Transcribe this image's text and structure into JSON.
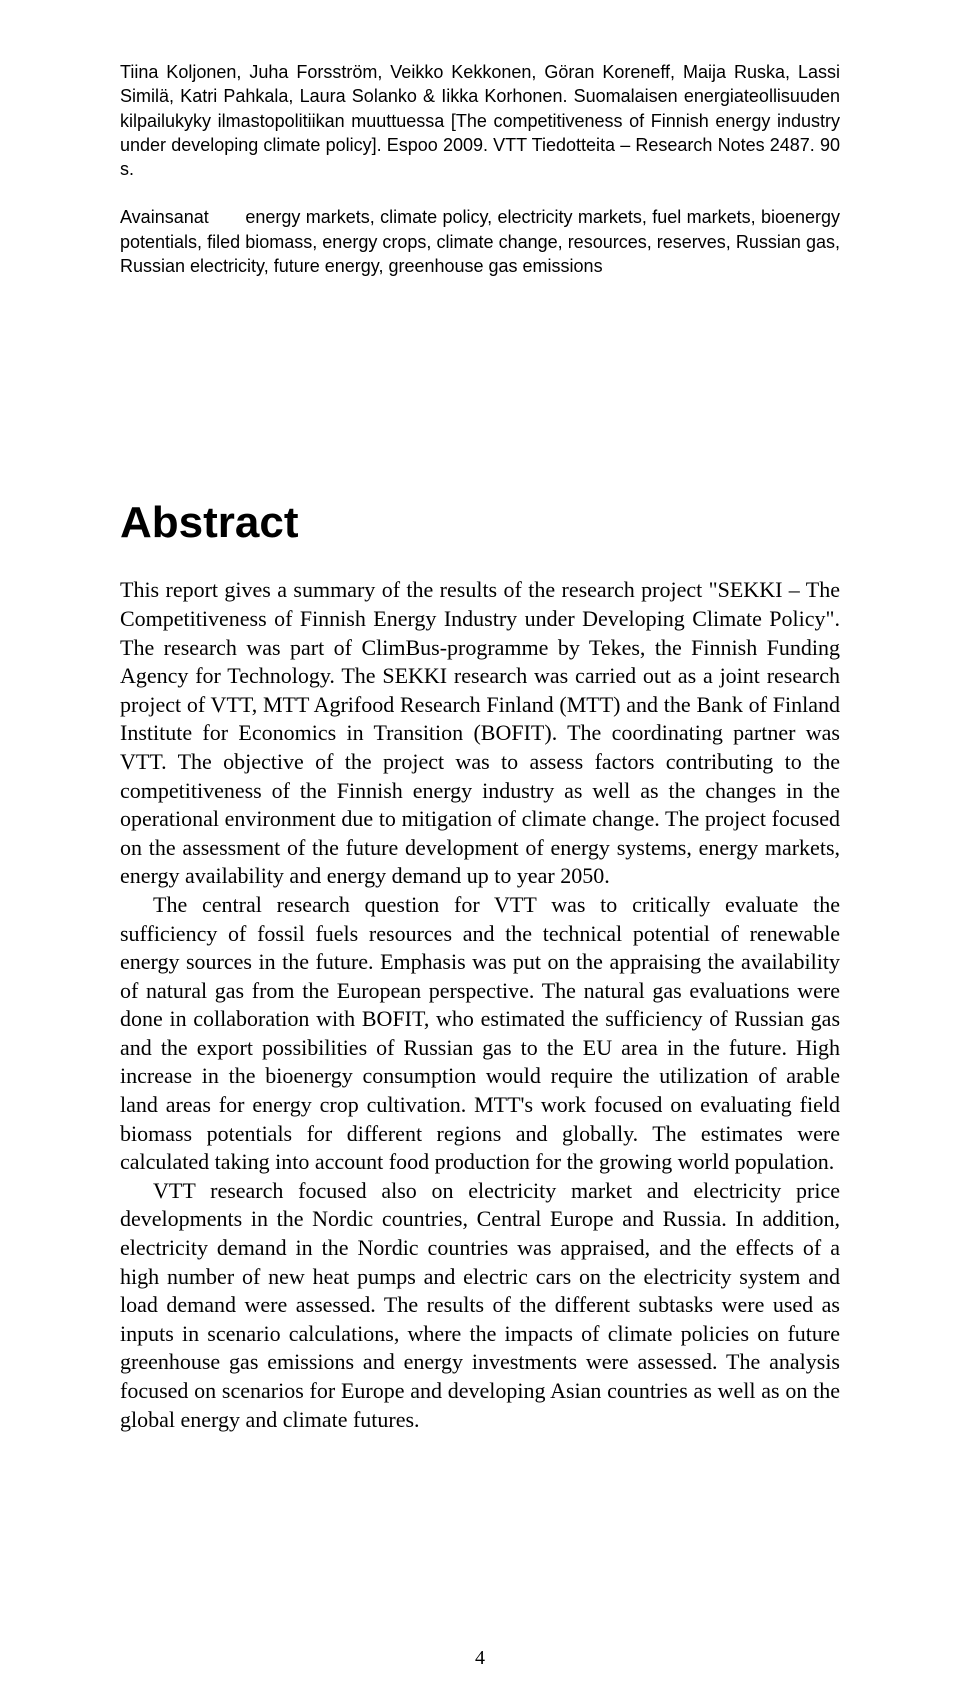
{
  "meta": {
    "citation": "Tiina Koljonen, Juha Forsström, Veikko Kekkonen, Göran Koreneff, Maija Ruska, Lassi Similä, Katri Pahkala, Laura Solanko & Iikka Korhonen. Suomalaisen energiateollisuuden kilpailukyky ilmastopolitiikan muuttuessa [The competitiveness of Finnish energy industry under developing climate policy]. Espoo 2009. VTT Tiedotteita – Research Notes 2487. 90 s.",
    "keywords_label": "Avainsanat",
    "keywords": "energy markets, climate policy, electricity markets, fuel markets, bioenergy potentials, filed biomass, energy crops, climate change, resources, reserves, Russian gas, Russian electricity, future energy, greenhouse gas emissions"
  },
  "abstract": {
    "heading": "Abstract",
    "p1": "This report gives a summary of the results of the research project \"SEKKI – The Competitiveness of Finnish Energy Industry under Developing Climate Policy\". The research was part of ClimBus-programme by Tekes, the Finnish Funding Agency for Technology. The SEKKI research was carried out as a joint research project of VTT, MTT Agrifood Research Finland (MTT) and the Bank of Finland Institute for Economics in Transition (BOFIT). The coordinating partner was VTT. The objective of the project was to assess factors contributing to the competitiveness of the Finnish energy industry as well as the changes in the operational environment due to mitigation of climate change. The project focused on the assessment of the future development of energy systems, energy markets, energy availability and energy demand up to year 2050.",
    "p2": "The central research question for VTT was to critically evaluate the sufficiency of fossil fuels resources and the technical potential of renewable energy sources in the future. Emphasis was put on the appraising the availability of natural gas from the European perspective. The natural gas evaluations were done in collaboration with BOFIT, who estimated the sufficiency of Russian gas and the export possibilities of Russian gas to the EU area in the future. High increase in the bioenergy consumption would require the utilization of arable land areas for energy crop cultivation. MTT's work focused on evaluating field biomass potentials for different regions and globally. The estimates were calculated taking into account food production for the growing world population.",
    "p3": "VTT research focused also on electricity market and electricity price developments in the Nordic countries, Central Europe and Russia. In addition, electricity demand in the Nordic countries was appraised, and the effects of a high number of new heat pumps and electric cars on the electricity system and load demand were assessed. The results of the different subtasks were used as inputs in scenario calculations, where the impacts of climate policies on future greenhouse gas emissions and energy investments were assessed. The analysis focused on scenarios for Europe and developing Asian countries as well as on the global energy and climate futures."
  },
  "page_number": "4"
}
